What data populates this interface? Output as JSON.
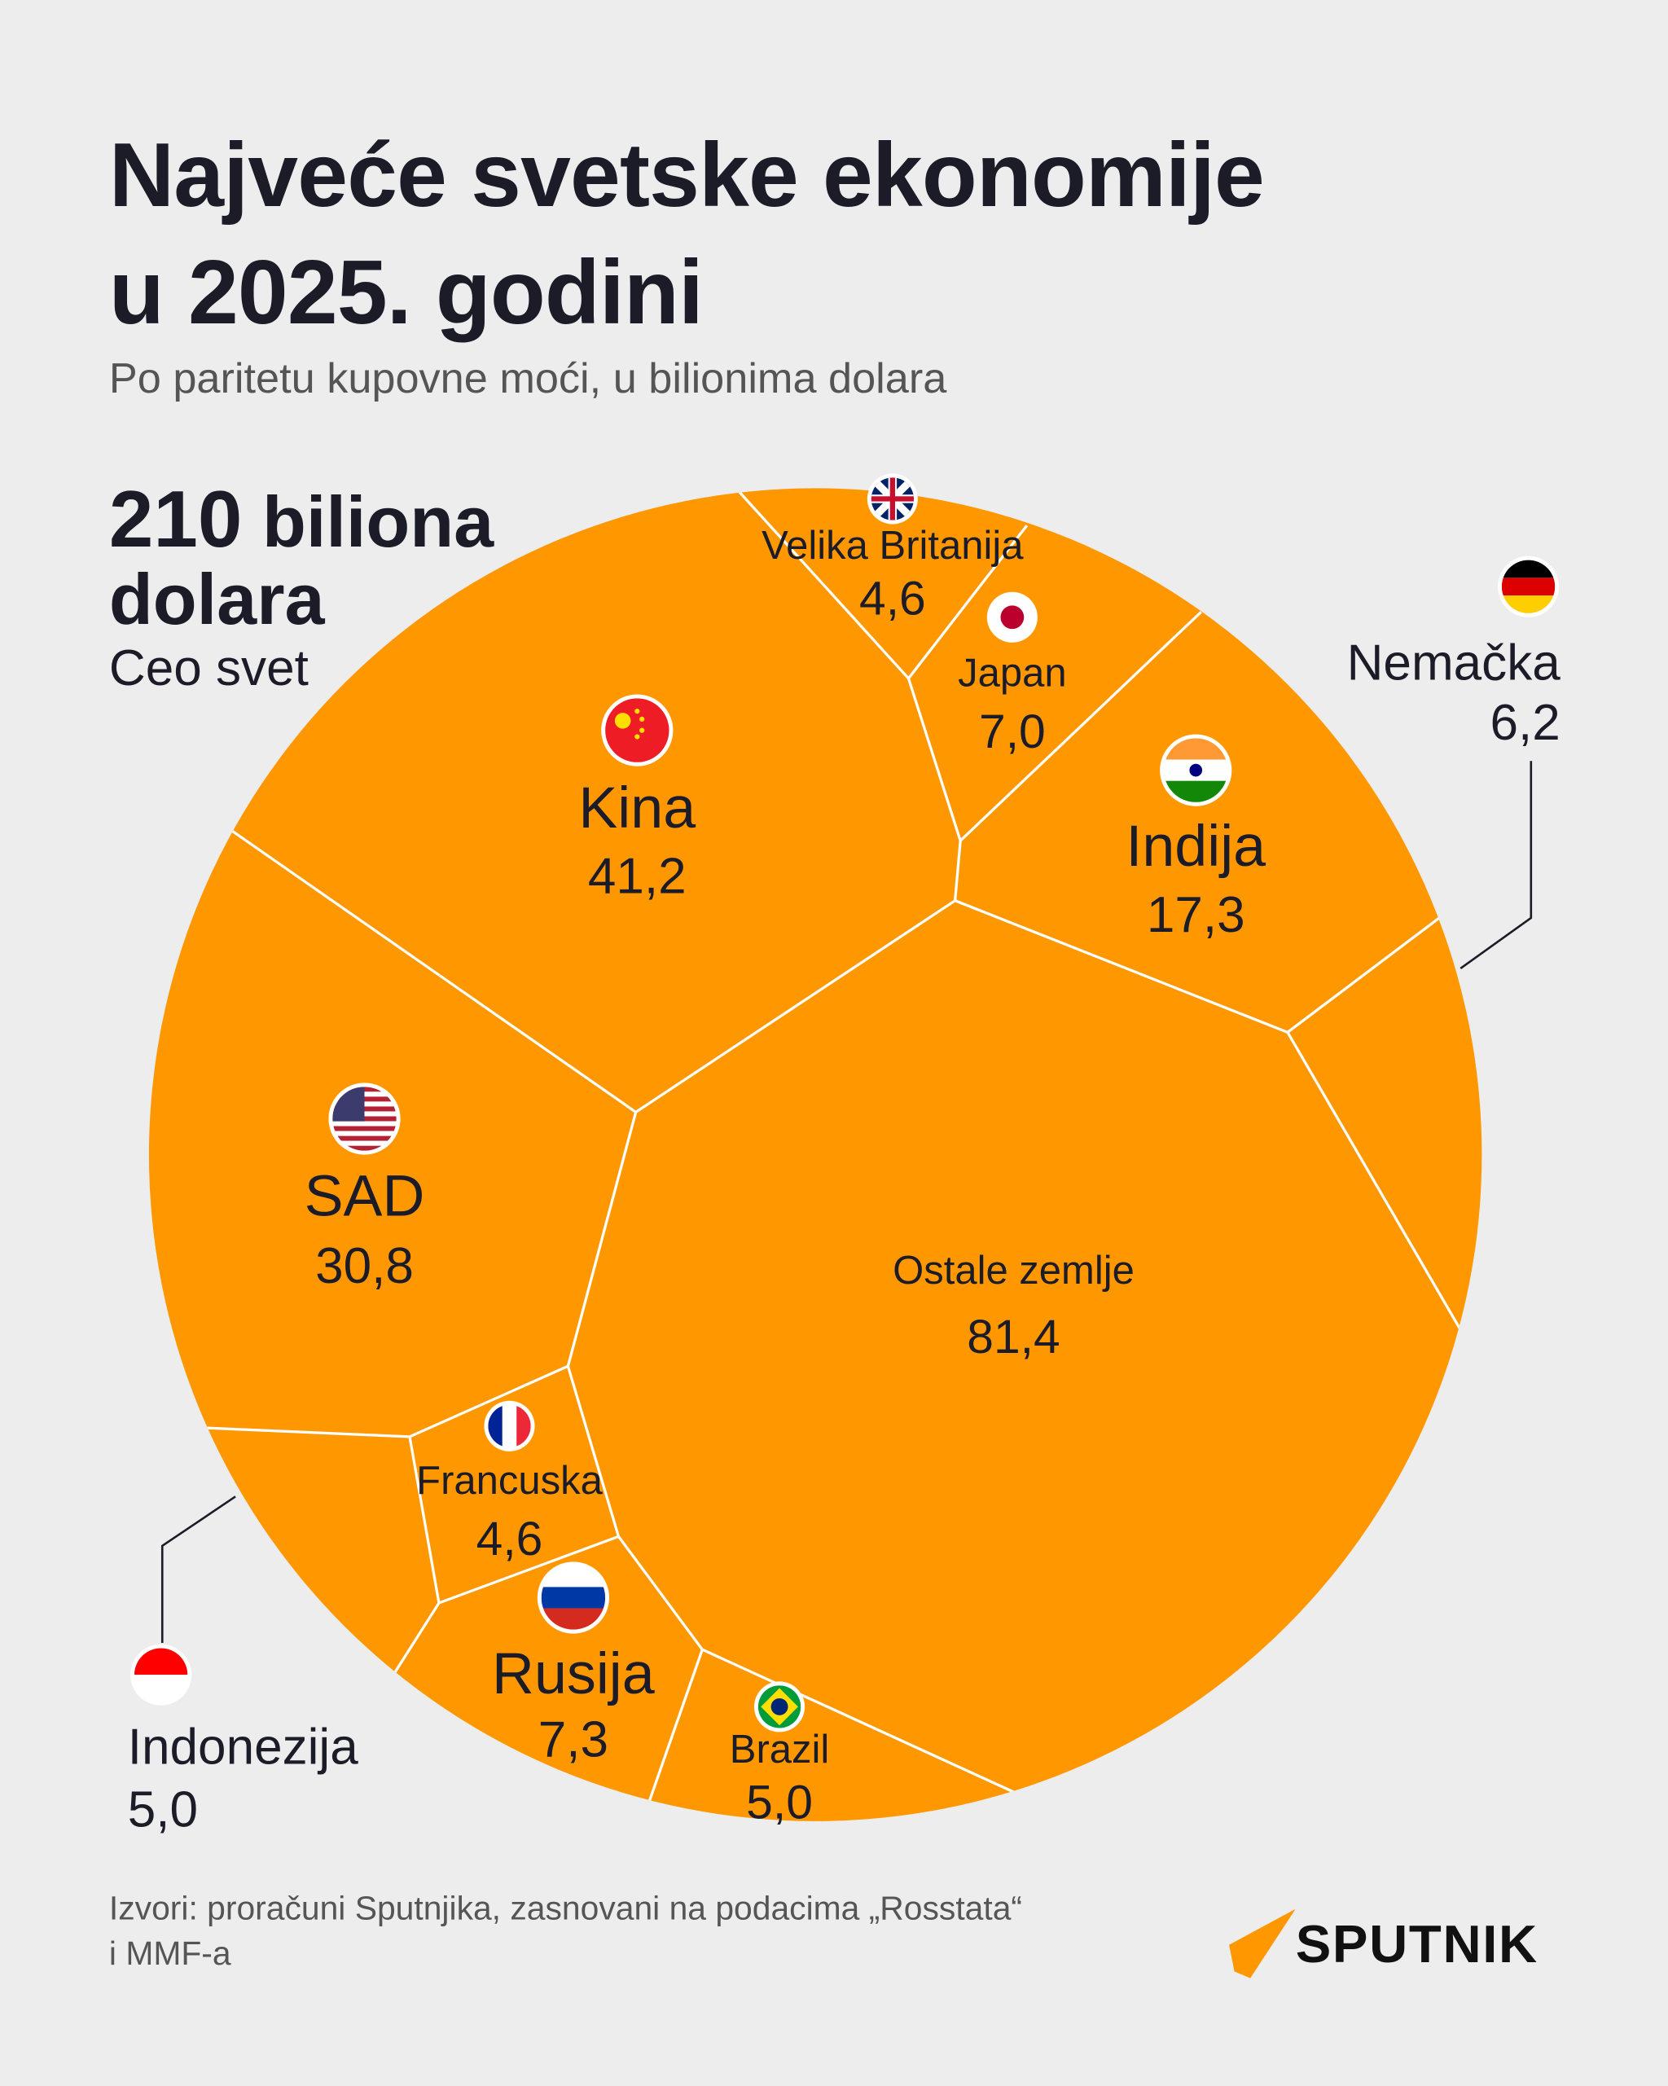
{
  "header": {
    "title_line1": "Najveće svetske ekonomije",
    "title_line2": "u 2025. godini",
    "subtitle": "Po paritetu kupovne moći, u bilionima dolara"
  },
  "total": {
    "number": "210",
    "unit_line1": "biliona",
    "unit_line2": "dolara",
    "scope": "Ceo svet"
  },
  "chart_data": {
    "type": "voronoi-treemap",
    "title": "Najveće svetske ekonomije u 2025. godini",
    "subtitle": "Po paritetu kupovne moći, u bilionima dolara",
    "total": 210,
    "cells": [
      {
        "name": "Kina",
        "value": 41.2,
        "label": "41,2",
        "flag": "china"
      },
      {
        "name": "SAD",
        "value": 30.8,
        "label": "30,8",
        "flag": "usa"
      },
      {
        "name": "Indija",
        "value": 17.3,
        "label": "17,3",
        "flag": "india"
      },
      {
        "name": "Ostale zemlje",
        "value": 81.4,
        "label": "81,4"
      },
      {
        "name": "Velika Britanija",
        "value": 4.6,
        "label": "4,6",
        "flag": "uk"
      },
      {
        "name": "Japan",
        "value": 7.0,
        "label": "7,0",
        "flag": "japan"
      },
      {
        "name": "Nemačka",
        "value": 6.2,
        "label": "6,2",
        "flag": "germany"
      },
      {
        "name": "Francuska",
        "value": 4.6,
        "label": "4,6",
        "flag": "france"
      },
      {
        "name": "Rusija",
        "value": 7.3,
        "label": "7,3",
        "flag": "russia"
      },
      {
        "name": "Brazil",
        "value": 5.0,
        "label": "5,0",
        "flag": "brazil"
      },
      {
        "name": "Indonezija",
        "value": 5.0,
        "label": "5,0",
        "flag": "indonesia"
      }
    ],
    "colors": {
      "cell": "#FF9800",
      "border": "#FFFFFF",
      "background": "#EDEDED"
    }
  },
  "footer": {
    "source_line1": "Izvori: proračuni Sputnjika, zasnovani na podacima „Rosstata“",
    "source_line2": "i MMF-a",
    "logo_text": "SPUTNIK"
  }
}
